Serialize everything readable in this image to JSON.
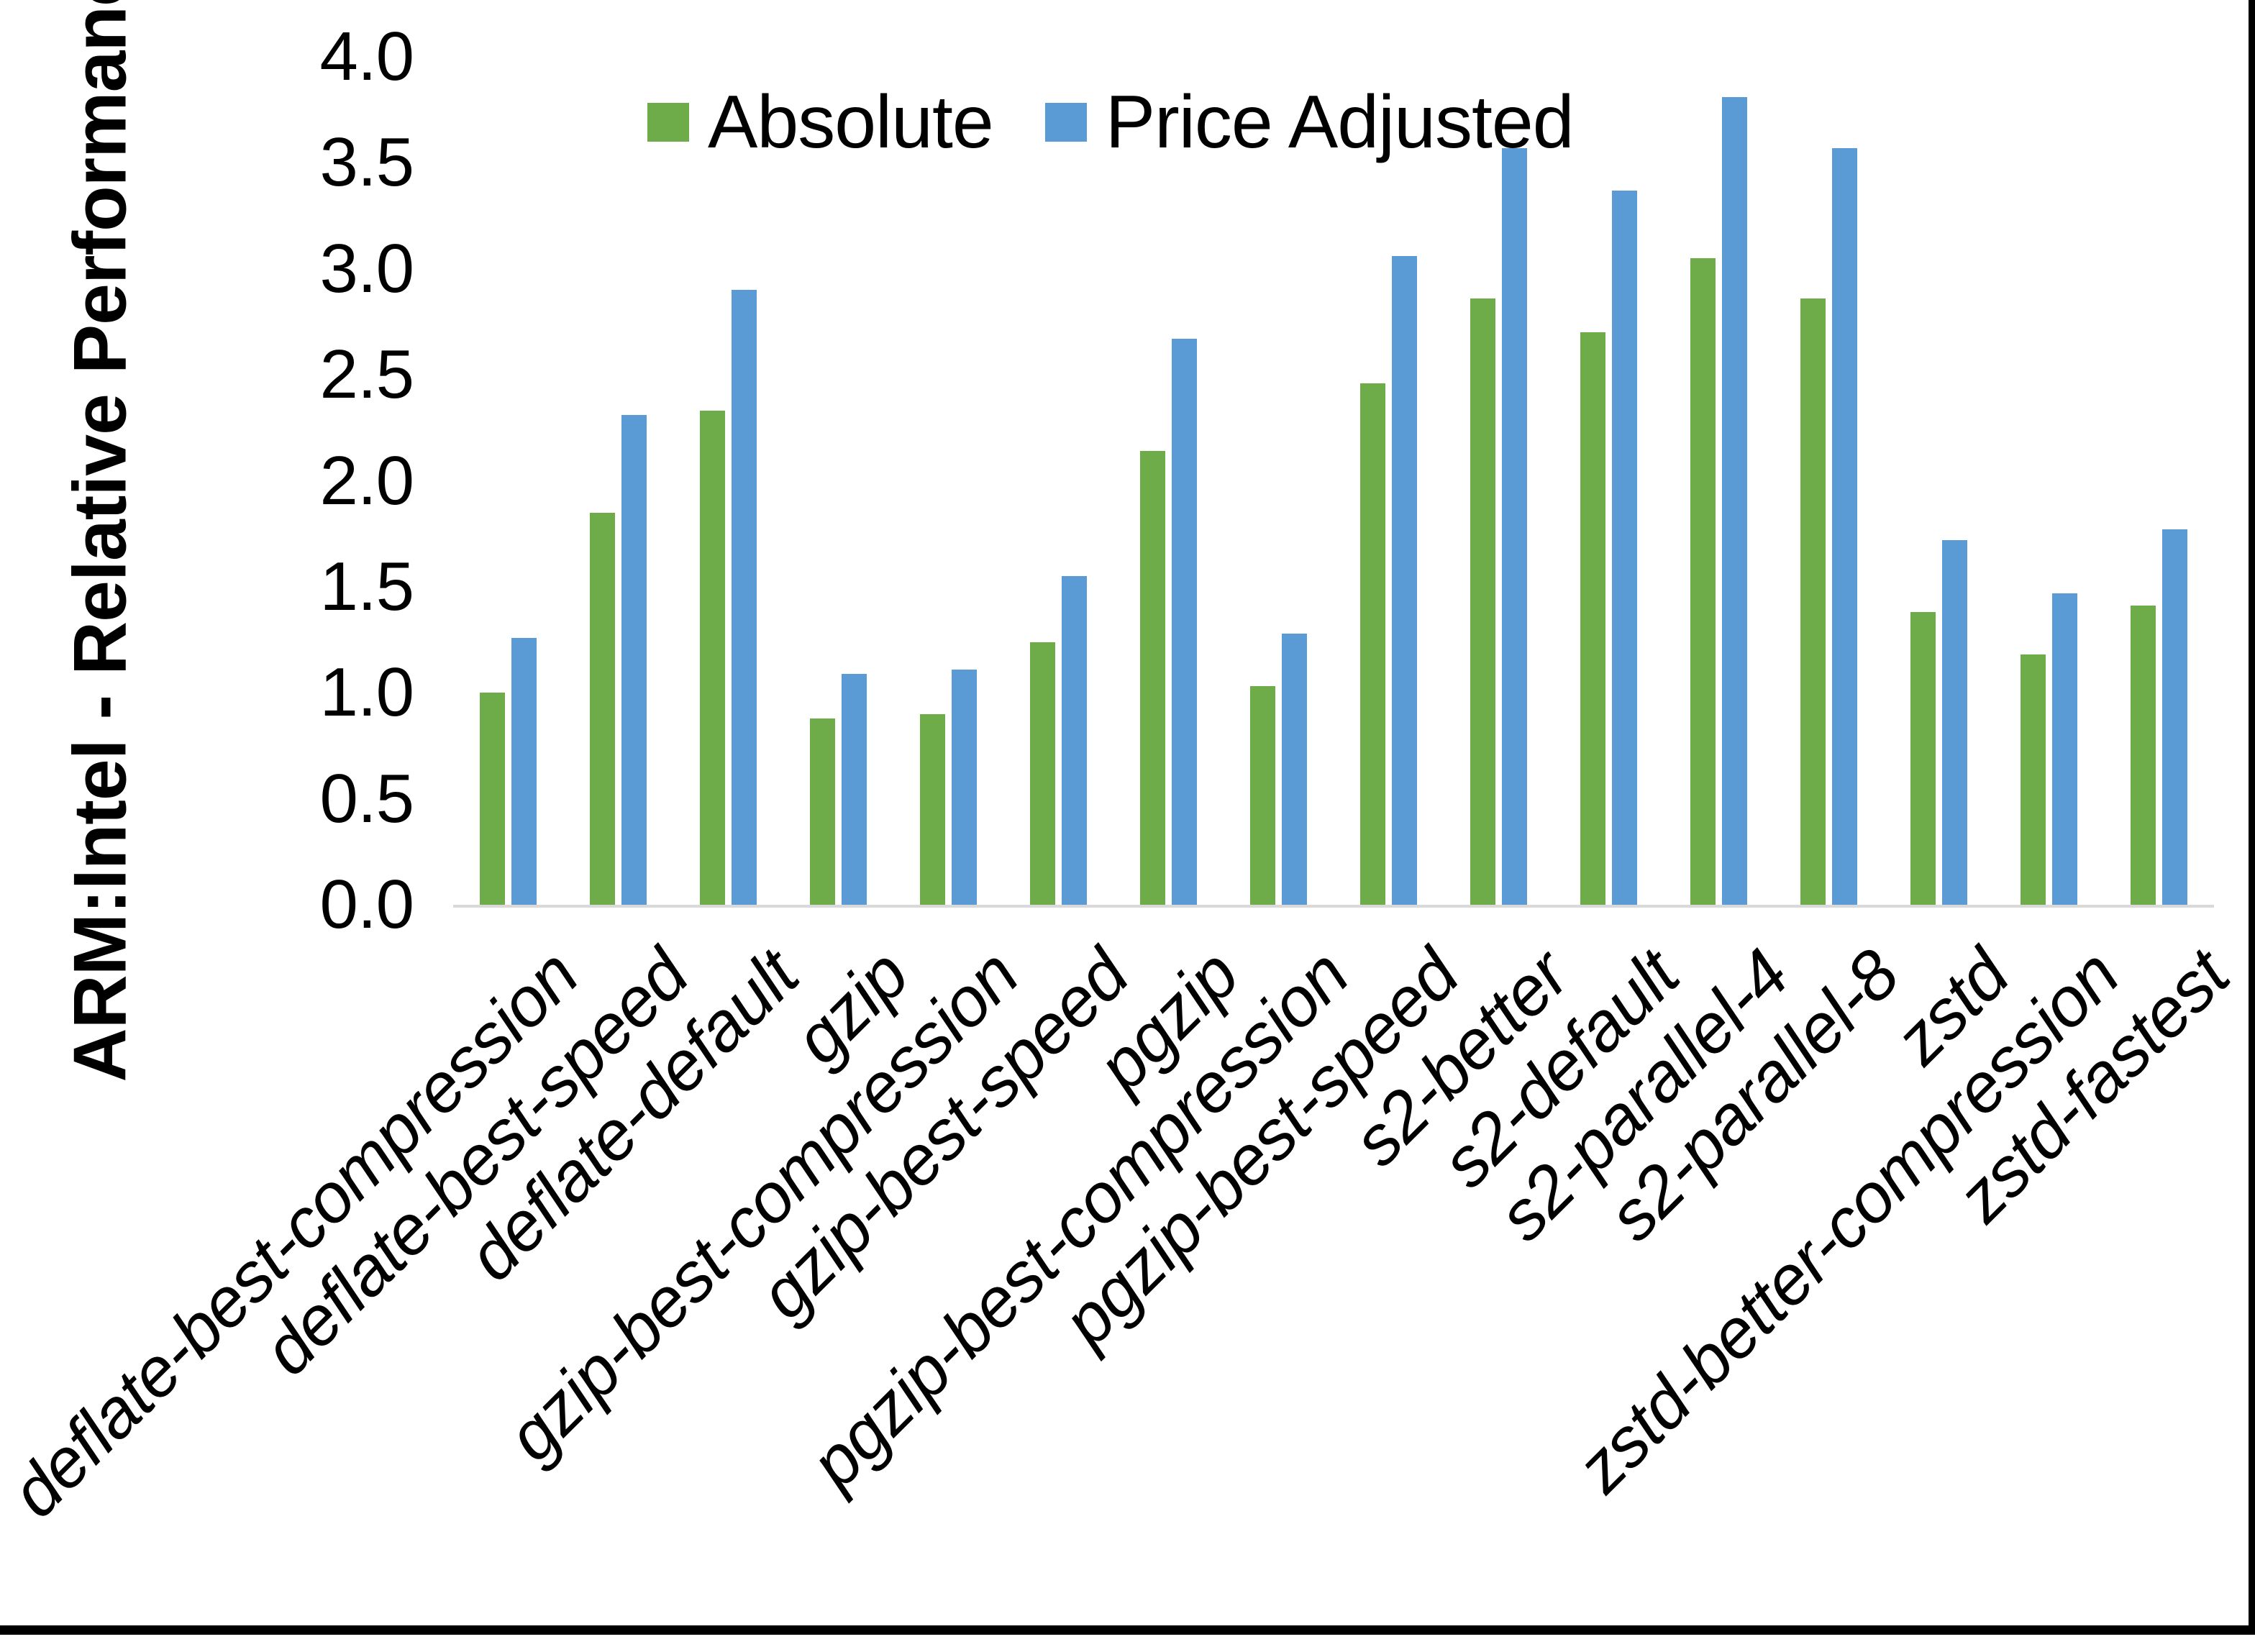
{
  "y_axis": {
    "title": "ARM:Intel - Relative Performance",
    "tick_labels": [
      "0.0",
      "0.5",
      "1.0",
      "1.5",
      "2.0",
      "2.5",
      "3.0",
      "3.5",
      "4.0"
    ]
  },
  "legend": {
    "items": [
      {
        "label": "Absolute",
        "color": "#6EAC49"
      },
      {
        "label": "Price Adjusted",
        "color": "#5B9BD5"
      }
    ]
  },
  "colors": {
    "absolute_green": "#6EAC49",
    "price_adjusted_blue": "#5B9BD5",
    "axis_line": "#d9d9d9",
    "frame_border": "#000000"
  },
  "chart_data": {
    "type": "bar",
    "title": "",
    "xlabel": "",
    "ylabel": "ARM:Intel - Relative Performance",
    "ylim": [
      0.0,
      4.0
    ],
    "ytick_step": 0.5,
    "grid": false,
    "legend_position": "top",
    "categories": [
      "deflate-best-compression",
      "deflate-best-speed",
      "deflate-default",
      "gzip",
      "gzip-best-compression",
      "gzip-best-speed",
      "pgzip",
      "pgzip-best-compression",
      "pgzip-best-speed",
      "s2-better",
      "s2-default",
      "s2-parallel-4",
      "s2-parallel-8",
      "zstd",
      "zstd-better-compression",
      "zstd-fastest"
    ],
    "series": [
      {
        "name": "Absolute",
        "color": "#6EAC49",
        "values": [
          1.0,
          1.85,
          2.33,
          0.88,
          0.9,
          1.24,
          2.14,
          1.03,
          2.46,
          2.86,
          2.7,
          3.05,
          2.86,
          1.38,
          1.18,
          1.41
        ]
      },
      {
        "name": "Price Adjusted",
        "color": "#5B9BD5",
        "values": [
          1.26,
          2.31,
          2.9,
          1.09,
          1.11,
          1.55,
          2.67,
          1.28,
          3.06,
          3.57,
          3.37,
          3.81,
          3.57,
          1.72,
          1.47,
          1.77
        ]
      }
    ]
  }
}
